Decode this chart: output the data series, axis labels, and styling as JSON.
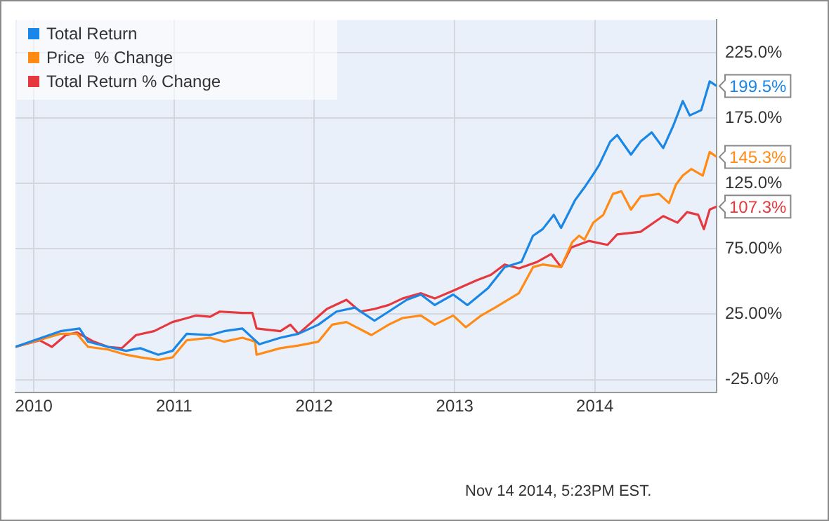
{
  "chart_data": {
    "type": "line",
    "xlim": [
      "2009-11-14",
      "2014-11-14"
    ],
    "xticks": [
      "2010",
      "2011",
      "2012",
      "2013",
      "2014"
    ],
    "ylim": [
      -35,
      250
    ],
    "yticks": [
      {
        "value": -25,
        "label": "-25.0%"
      },
      {
        "value": 25,
        "label": "25.00%"
      },
      {
        "value": 75,
        "label": "75.00%"
      },
      {
        "value": 125,
        "label": "125.0%"
      },
      {
        "value": 175,
        "label": "175.0%"
      },
      {
        "value": 225,
        "label": "225.0%"
      }
    ],
    "grid": true,
    "legend": "top left",
    "marker": "none",
    "line_style": "solid",
    "annotations": [
      "Nov 14 2014, 5:23PM EST."
    ],
    "series": [
      {
        "name": "Total Return",
        "color": "#1a86e6",
        "x": [
          "2009-11-14",
          "2010-03-11",
          "2010-04-30",
          "2010-05-22",
          "2010-07-13",
          "2010-08-29",
          "2010-10-05",
          "2010-11-21",
          "2010-12-28",
          "2011-02-03",
          "2011-04-05",
          "2011-05-11",
          "2011-06-28",
          "2011-08-11",
          "2011-10-05",
          "2011-11-21",
          "2012-01-12",
          "2012-02-28",
          "2012-04-16",
          "2012-06-06",
          "2012-07-13",
          "2012-08-29",
          "2012-10-05",
          "2012-11-10",
          "2012-12-28",
          "2013-02-03",
          "2013-03-29",
          "2013-05-11",
          "2013-06-24",
          "2013-07-24",
          "2013-08-18",
          "2013-09-16",
          "2013-10-05",
          "2013-11-10",
          "2013-12-05",
          "2013-12-28",
          "2014-01-12",
          "2014-02-10",
          "2014-02-28",
          "2014-04-05",
          "2014-04-30",
          "2014-05-29",
          "2014-06-28",
          "2014-07-24",
          "2014-08-18",
          "2014-09-05",
          "2014-10-05",
          "2014-10-27",
          "2014-11-14"
        ],
        "values": [
          0,
          12,
          14,
          4,
          0,
          -3,
          -1,
          -6,
          -3,
          10,
          9,
          12,
          14,
          2,
          7,
          10,
          17,
          27,
          30,
          20,
          27,
          36,
          40,
          32,
          40,
          32,
          45,
          61,
          65,
          85,
          90,
          101,
          91,
          112,
          122,
          132,
          139,
          157,
          162,
          147,
          157,
          164,
          152,
          169,
          188,
          177,
          181,
          203,
          199.5
        ],
        "value_labels": [
          null,
          null,
          null,
          null,
          null,
          null,
          null,
          null,
          null,
          null,
          null,
          null,
          null,
          null,
          null,
          null,
          null,
          null,
          null,
          null,
          null,
          null,
          null,
          null,
          null,
          null,
          null,
          null,
          null,
          null,
          null,
          null,
          null,
          null,
          null,
          null,
          null,
          null,
          null,
          null,
          null,
          null,
          null,
          null,
          null,
          null,
          null,
          null,
          "199.5%"
        ]
      },
      {
        "name": "Price  % Change",
        "color": "#ff8a14",
        "x": [
          "2009-11-14",
          "2010-03-11",
          "2010-04-23",
          "2010-05-22",
          "2010-07-13",
          "2010-08-29",
          "2010-10-05",
          "2010-11-21",
          "2010-12-28",
          "2011-02-03",
          "2011-04-05",
          "2011-05-11",
          "2011-06-28",
          "2011-07-31",
          "2011-08-04",
          "2011-10-05",
          "2011-11-21",
          "2012-01-12",
          "2012-02-17",
          "2012-03-25",
          "2012-05-29",
          "2012-07-13",
          "2012-08-18",
          "2012-10-05",
          "2012-11-10",
          "2012-12-28",
          "2013-01-30",
          "2013-03-11",
          "2013-04-16",
          "2013-06-17",
          "2013-07-24",
          "2013-08-18",
          "2013-10-05",
          "2013-11-03",
          "2013-11-21",
          "2013-12-05",
          "2013-12-28",
          "2014-01-23",
          "2014-02-17",
          "2014-03-11",
          "2014-04-05",
          "2014-04-30",
          "2014-06-17",
          "2014-07-13",
          "2014-07-31",
          "2014-08-18",
          "2014-09-09",
          "2014-10-09",
          "2014-10-27",
          "2014-11-14"
        ],
        "values": [
          0,
          10,
          10,
          0,
          -2,
          -6,
          -8,
          -10,
          -8,
          5,
          7,
          4,
          7,
          4,
          -6,
          -1,
          1,
          4,
          17,
          19,
          9,
          17,
          22,
          24,
          17,
          24,
          15,
          24,
          30,
          41,
          61,
          63,
          61,
          80,
          85,
          82,
          95,
          101,
          117,
          119,
          105,
          115,
          117,
          110,
          124,
          131,
          136,
          131,
          149,
          145.3
        ],
        "value_labels": [
          null,
          null,
          null,
          null,
          null,
          null,
          null,
          null,
          null,
          null,
          null,
          null,
          null,
          null,
          null,
          null,
          null,
          null,
          null,
          null,
          null,
          null,
          null,
          null,
          null,
          null,
          null,
          null,
          null,
          null,
          null,
          null,
          null,
          null,
          null,
          null,
          null,
          null,
          null,
          null,
          null,
          null,
          null,
          null,
          null,
          null,
          null,
          null,
          null,
          "145.3%"
        ]
      },
      {
        "name": "Total Return % Change",
        "color": "#e5383f",
        "x": [
          "2009-11-14",
          "2010-01-16",
          "2010-02-17",
          "2010-03-25",
          "2010-04-23",
          "2010-06-06",
          "2010-07-13",
          "2010-08-18",
          "2010-09-24",
          "2010-11-10",
          "2010-12-28",
          "2011-02-28",
          "2011-04-05",
          "2011-04-30",
          "2011-06-28",
          "2011-07-24",
          "2011-08-04",
          "2011-10-05",
          "2011-10-31",
          "2011-11-21",
          "2012-02-03",
          "2012-03-25",
          "2012-04-30",
          "2012-06-06",
          "2012-07-13",
          "2012-08-18",
          "2012-10-05",
          "2012-11-10",
          "2012-12-28",
          "2013-02-28",
          "2013-04-05",
          "2013-05-11",
          "2013-06-17",
          "2013-08-04",
          "2013-09-09",
          "2013-10-05",
          "2013-10-31",
          "2013-12-16",
          "2014-02-03",
          "2014-02-28",
          "2014-04-30",
          "2014-06-28",
          "2014-08-04",
          "2014-08-29",
          "2014-09-27",
          "2014-10-12",
          "2014-10-27",
          "2014-11-14"
        ],
        "values": [
          0,
          5,
          0,
          9,
          11,
          4,
          0,
          -1,
          9,
          12,
          19,
          24,
          23,
          27,
          26,
          26,
          14,
          12,
          17,
          10,
          29,
          36,
          27,
          29,
          32,
          37,
          41,
          37,
          43,
          51,
          55,
          63,
          60,
          65,
          71,
          61,
          76,
          81,
          78,
          86,
          88,
          100,
          95,
          103,
          101,
          90,
          105,
          107.3
        ],
        "value_labels": [
          null,
          null,
          null,
          null,
          null,
          null,
          null,
          null,
          null,
          null,
          null,
          null,
          null,
          null,
          null,
          null,
          null,
          null,
          null,
          null,
          null,
          null,
          null,
          null,
          null,
          null,
          null,
          null,
          null,
          null,
          null,
          null,
          null,
          null,
          null,
          null,
          null,
          null,
          null,
          null,
          null,
          null,
          null,
          null,
          null,
          null,
          null,
          "107.3%"
        ]
      }
    ]
  }
}
